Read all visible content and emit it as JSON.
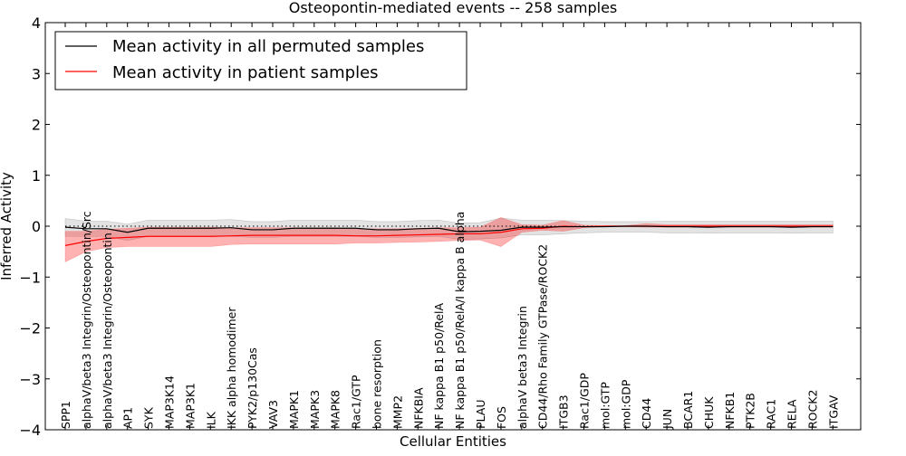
{
  "chart_data": {
    "type": "line",
    "title": "Osteopontin-mediated events -- 258 samples",
    "xlabel": "Cellular Entities",
    "ylabel": "Inferred Activity",
    "ylim": [
      -4,
      4
    ],
    "yticks": [
      -4,
      -3,
      -2,
      -1,
      0,
      1,
      2,
      3,
      4
    ],
    "ytick_labels": [
      "−4",
      "−3",
      "−2",
      "−1",
      "0",
      "1",
      "2",
      "3",
      "4"
    ],
    "grid": false,
    "legend_position": "top-left",
    "categories": [
      "SPP1",
      "alphaV/beta3 Integrin/Osteopontin/Src",
      "alphaV/beta3 Integrin/Osteopontin",
      "AP1",
      "SYK",
      "MAP3K14",
      "MAP3K1",
      "ILK",
      "IKK alpha homodimer",
      "PYK2/p130Cas",
      "VAV3",
      "MAPK1",
      "MAPK3",
      "MAPK8",
      "Rac1/GTP",
      "bone resorption",
      "MMP2",
      "NFKBIA",
      "NF kappa B1 p50/RelA",
      "NF kappa B1 p50/RelA/I kappa B alpha",
      "PLAU",
      "FOS",
      "alphaV beta3 Integrin",
      "CD44/Rho Family GTPase/ROCK2",
      "ITGB3",
      "Rac1/GDP",
      "mol:GTP",
      "mol:GDP",
      "CD44",
      "JUN",
      "BCAR1",
      "CHUK",
      "NFKB1",
      "PTK2B",
      "RAC1",
      "RELA",
      "ROCK2",
      "ITGAV"
    ],
    "series": [
      {
        "name": "Mean activity in all permuted samples",
        "color": "#000000",
        "values": [
          -0.02,
          -0.05,
          -0.05,
          -0.12,
          -0.04,
          -0.04,
          -0.04,
          -0.04,
          -0.03,
          -0.07,
          -0.07,
          -0.04,
          -0.04,
          -0.04,
          -0.04,
          -0.07,
          -0.07,
          -0.05,
          -0.04,
          -0.11,
          -0.1,
          -0.08,
          -0.02,
          -0.02,
          -0.01,
          -0.01,
          -0.01,
          0.0,
          0.0,
          -0.01,
          -0.01,
          -0.02,
          -0.01,
          -0.01,
          -0.01,
          -0.02,
          -0.01,
          -0.01
        ],
        "lower": [
          -0.2,
          -0.2,
          -0.2,
          -0.28,
          -0.2,
          -0.2,
          -0.2,
          -0.2,
          -0.2,
          -0.22,
          -0.22,
          -0.2,
          -0.2,
          -0.2,
          -0.2,
          -0.22,
          -0.22,
          -0.21,
          -0.2,
          -0.26,
          -0.25,
          -0.23,
          -0.17,
          -0.17,
          -0.15,
          -0.13,
          -0.12,
          -0.12,
          -0.12,
          -0.13,
          -0.13,
          -0.14,
          -0.13,
          -0.13,
          -0.13,
          -0.14,
          -0.13,
          -0.13
        ],
        "upper": [
          0.15,
          0.1,
          0.1,
          0.04,
          0.12,
          0.12,
          0.12,
          0.12,
          0.13,
          0.09,
          0.09,
          0.12,
          0.12,
          0.12,
          0.12,
          0.09,
          0.09,
          0.11,
          0.12,
          0.06,
          0.07,
          0.16,
          0.12,
          0.12,
          0.11,
          0.1,
          0.09,
          0.09,
          0.09,
          0.1,
          0.1,
          0.1,
          0.1,
          0.1,
          0.1,
          0.1,
          0.1,
          0.1
        ]
      },
      {
        "name": "Mean activity in patient samples",
        "color": "#ff0000",
        "values": [
          -0.38,
          -0.3,
          -0.24,
          -0.22,
          -0.2,
          -0.2,
          -0.2,
          -0.2,
          -0.19,
          -0.18,
          -0.18,
          -0.18,
          -0.18,
          -0.18,
          -0.19,
          -0.19,
          -0.18,
          -0.17,
          -0.16,
          -0.15,
          -0.15,
          -0.12,
          -0.05,
          -0.04,
          0.0,
          -0.01,
          0.0,
          0.0,
          0.0,
          0.0,
          0.0,
          0.0,
          0.0,
          0.0,
          0.0,
          0.0,
          0.0,
          0.0
        ],
        "lower": [
          -0.7,
          -0.5,
          -0.42,
          -0.4,
          -0.4,
          -0.4,
          -0.4,
          -0.4,
          -0.36,
          -0.35,
          -0.35,
          -0.35,
          -0.35,
          -0.35,
          -0.33,
          -0.33,
          -0.32,
          -0.31,
          -0.3,
          -0.28,
          -0.27,
          -0.4,
          -0.12,
          -0.08,
          -0.1,
          -0.03,
          -0.01,
          -0.01,
          -0.02,
          -0.02,
          -0.02,
          -0.02,
          -0.02,
          -0.02,
          -0.02,
          -0.02,
          -0.02,
          -0.02
        ],
        "upper": [
          -0.1,
          -0.1,
          -0.06,
          -0.04,
          -0.02,
          -0.02,
          -0.02,
          -0.02,
          -0.03,
          -0.03,
          -0.03,
          -0.03,
          -0.03,
          -0.03,
          -0.05,
          -0.05,
          -0.05,
          -0.04,
          -0.03,
          -0.03,
          -0.02,
          0.17,
          0.03,
          0.02,
          0.11,
          0.02,
          0.01,
          0.01,
          0.05,
          0.03,
          0.03,
          0.03,
          0.03,
          0.03,
          0.03,
          0.03,
          0.03,
          0.03
        ]
      }
    ],
    "baseline": 0
  }
}
